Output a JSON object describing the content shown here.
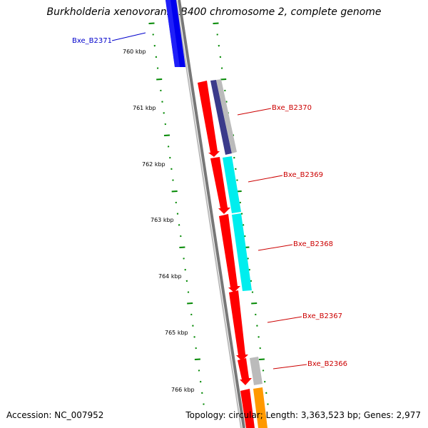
{
  "title": "Burkholderia xenovorans LB400 chromosome 2, complete genome",
  "accession": "Accession: NC_007952",
  "topology_summary": "Topology: circular; Length: 3,363,523 bp; Genes: 2,977",
  "scale_labels": [
    "760 kbp",
    "761 kbp",
    "762 kbp",
    "763 kbp",
    "764 kbp",
    "765 kbp",
    "766 kbp"
  ],
  "gene_labels": [
    {
      "text": "Bxe_B2371",
      "color": "#0000cc"
    },
    {
      "text": "Bxe_B2370",
      "color": "#cc0000"
    },
    {
      "text": "Bxe_B2369",
      "color": "#cc0000"
    },
    {
      "text": "Bxe_B2368",
      "color": "#cc0000"
    },
    {
      "text": "Bxe_B2367",
      "color": "#cc0000"
    },
    {
      "text": "Bxe_B2366",
      "color": "#cc0000"
    }
  ],
  "colors": {
    "forward_gene": "#ff0000",
    "reverse_gene": "#0000ee",
    "cog_navy": "#3a3a8a",
    "cog_cyan": "#00ffff",
    "cog_grey": "#bbbbbb",
    "cog_orange": "#ff9900",
    "backbone": "#888888",
    "ticks": "#008800"
  }
}
